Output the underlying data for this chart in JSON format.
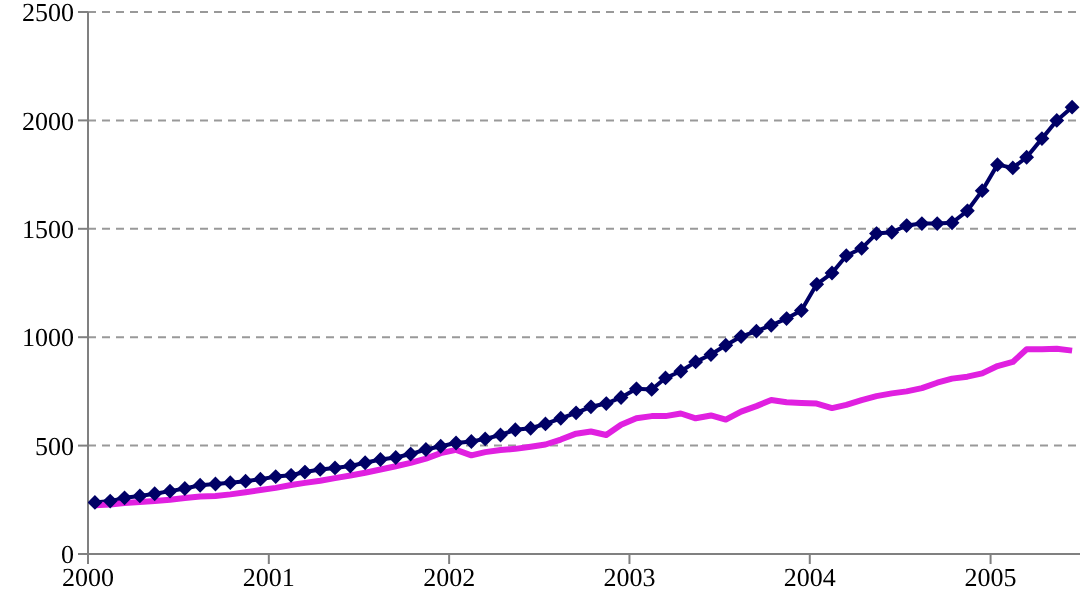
{
  "chart_data": {
    "type": "line",
    "x": [
      "2000-01-15",
      "2000-02-15",
      "2000-03-15",
      "2000-04-15",
      "2000-05-15",
      "2000-06-15",
      "2000-07-15",
      "2000-08-15",
      "2000-09-15",
      "2000-10-15",
      "2000-11-15",
      "2000-12-15",
      "2001-01-15",
      "2001-02-15",
      "2001-03-15",
      "2001-04-15",
      "2001-05-15",
      "2001-06-15",
      "2001-07-15",
      "2001-08-15",
      "2001-09-15",
      "2001-10-15",
      "2001-11-15",
      "2001-12-15",
      "2002-01-15",
      "2002-02-15",
      "2002-03-15",
      "2002-04-15",
      "2002-05-15",
      "2002-06-15",
      "2002-07-15",
      "2002-08-15",
      "2002-09-15",
      "2002-10-15",
      "2002-11-15",
      "2002-12-15",
      "2003-01-15",
      "2003-02-15",
      "2003-03-15",
      "2003-04-15",
      "2003-05-15",
      "2003-06-15",
      "2003-07-15",
      "2003-08-15",
      "2003-09-15",
      "2003-10-15",
      "2003-11-15",
      "2003-12-15",
      "2004-01-15",
      "2004-02-15",
      "2004-03-15",
      "2004-04-15",
      "2004-05-15",
      "2004-06-15",
      "2004-07-15",
      "2004-08-15",
      "2004-09-15",
      "2004-10-15",
      "2004-11-15",
      "2004-12-15",
      "2005-01-15",
      "2005-02-15",
      "2005-03-15",
      "2005-04-15",
      "2005-05-15",
      "2005-06-15"
    ],
    "series": [
      {
        "color": "#000066",
        "marker": "diamond",
        "values": [
          238,
          244,
          259,
          268,
          278,
          290,
          302,
          317,
          323,
          329,
          336,
          345,
          357,
          363,
          378,
          390,
          397,
          406,
          421,
          436,
          445,
          461,
          482,
          497,
          512,
          519,
          531,
          549,
          573,
          580,
          600,
          626,
          651,
          679,
          694,
          722,
          762,
          759,
          812,
          843,
          886,
          920,
          963,
          1003,
          1028,
          1055,
          1086,
          1123,
          1244,
          1296,
          1376,
          1410,
          1478,
          1484,
          1515,
          1524,
          1524,
          1528,
          1583,
          1676,
          1796,
          1781,
          1830,
          1916,
          2000,
          2061
        ]
      },
      {
        "color": "#e020e0",
        "marker": "none",
        "values": [
          225,
          228,
          235,
          240,
          245,
          250,
          258,
          265,
          268,
          275,
          285,
          295,
          305,
          318,
          328,
          338,
          350,
          362,
          375,
          390,
          405,
          420,
          440,
          465,
          480,
          455,
          470,
          480,
          485,
          495,
          505,
          528,
          555,
          565,
          549,
          596,
          626,
          636,
          636,
          648,
          626,
          639,
          620,
          657,
          682,
          710,
          700,
          697,
          694,
          673,
          688,
          710,
          728,
          741,
          750,
          765,
          790,
          809,
          818,
          833,
          867,
          886,
          944,
          944,
          947,
          938
        ]
      }
    ],
    "xlim": [
      "2000-01",
      "2005-07"
    ],
    "xticks": [
      {
        "value": "2000-01",
        "label": "2000"
      },
      {
        "value": "2001-01",
        "label": "2001"
      },
      {
        "value": "2002-01",
        "label": "2002"
      },
      {
        "value": "2003-01",
        "label": "2003"
      },
      {
        "value": "2004-01",
        "label": "2004"
      },
      {
        "value": "2005-01",
        "label": "2005"
      }
    ],
    "ylim": [
      0,
      2500
    ],
    "yticks": [
      0,
      500,
      1000,
      1500,
      2000,
      2500
    ],
    "grid": "y",
    "line_style": "solid"
  }
}
